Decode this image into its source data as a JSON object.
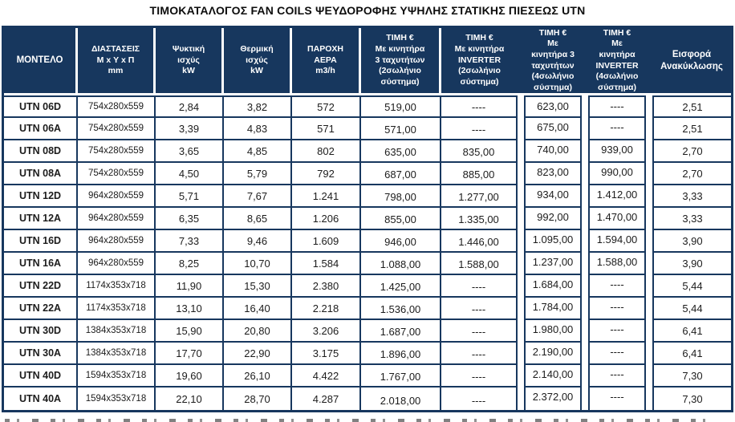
{
  "title": "ΤΙΜΟΚΑΤΑΛΟΓΟΣ FAN COILS ΨΕΥΔΟΡΟΦΗΣ ΥΨΗΛΗΣ ΣΤΑΤΙΚΗΣ ΠΙΕΣΕΩΣ UTN",
  "colors": {
    "header_bg": "#17375e",
    "border": "#17375e",
    "header_text": "#ffffff",
    "body_text": "#1c1c1c",
    "row_bg": "#ffffff"
  },
  "table": {
    "columns": [
      {
        "id": "model",
        "label": "ΜΟΝΤΕΛΟ"
      },
      {
        "id": "dimensions",
        "label": "ΔΙΑΣΤΑΣΕΙΣ\nΜ x Υ x Π\nmm"
      },
      {
        "id": "cooling-kw",
        "label": "Ψυκτική\nισχύς\nkW"
      },
      {
        "id": "heating-kw",
        "label": "Θερμική\nισχύς\nkW"
      },
      {
        "id": "airflow",
        "label": "ΠΑΡΟΧΗ\nΑΕΡΑ\nm3/h"
      },
      {
        "id": "price-2pipe-3speed",
        "label": "ΤΙΜΗ €\nΜε κινητήρα\n3 ταχυτήτων\n(2σωλήνιο\nσύστημα)"
      },
      {
        "id": "price-2pipe-inverter",
        "label": "ΤΙΜΗ  €\nΜε κινητήρα\nINVERTER\n(2σωλήνιο\nσύστημα)"
      },
      {
        "id": "price-4pipe-3speed",
        "label": "ΤΙΜΗ €\nΜε\nκινητήρα 3\nταχυτήτων\n(4σωλήνιο\nσύστημα)"
      },
      {
        "id": "price-4pipe-inverter",
        "label": "ΤΙΜΗ  €\nΜε\nκινητήρα\nINVERTER\n(4σωλήνιο\nσύστημα)"
      },
      {
        "id": "recycling-fee",
        "label": "Εισφορά\nΑνακύκλωσης"
      }
    ],
    "rows": [
      [
        "UTN 06D",
        "754x280x559",
        "2,84",
        "3,82",
        "572",
        "519,00",
        "----",
        "623,00",
        "----",
        "2,51"
      ],
      [
        "UTN 06A",
        "754x280x559",
        "3,39",
        "4,83",
        "571",
        "571,00",
        "----",
        "675,00",
        "----",
        "2,51"
      ],
      [
        "UTN 08D",
        "754x280x559",
        "3,65",
        "4,85",
        "802",
        "635,00",
        "835,00",
        "740,00",
        "939,00",
        "2,70"
      ],
      [
        "UTN 08A",
        "754x280x559",
        "4,50",
        "5,79",
        "792",
        "687,00",
        "885,00",
        "823,00",
        "990,00",
        "2,70"
      ],
      [
        "UTN 12D",
        "964x280x559",
        "5,71",
        "7,67",
        "1.241",
        "798,00",
        "1.277,00",
        "934,00",
        "1.412,00",
        "3,33"
      ],
      [
        "UTN 12A",
        "964x280x559",
        "6,35",
        "8,65",
        "1.206",
        "855,00",
        "1.335,00",
        "992,00",
        "1.470,00",
        "3,33"
      ],
      [
        "UTN 16D",
        "964x280x559",
        "7,33",
        "9,46",
        "1.609",
        "946,00",
        "1.446,00",
        "1.095,00",
        "1.594,00",
        "3,90"
      ],
      [
        "UTN 16A",
        "964x280x559",
        "8,25",
        "10,70",
        "1.584",
        "1.088,00",
        "1.588,00",
        "1.237,00",
        "1.588,00",
        "3,90"
      ],
      [
        "UTN 22D",
        "1174x353x718",
        "11,90",
        "15,30",
        "2.380",
        "1.425,00",
        "----",
        "1.684,00",
        "----",
        "5,44"
      ],
      [
        "UTN 22A",
        "1174x353x718",
        "13,10",
        "16,40",
        "2.218",
        "1.536,00",
        "----",
        "1.784,00",
        "----",
        "5,44"
      ],
      [
        "UTN 30D",
        "1384x353x718",
        "15,90",
        "20,80",
        "3.206",
        "1.687,00",
        "----",
        "1.980,00",
        "----",
        "6,41"
      ],
      [
        "UTN 30A",
        "1384x353x718",
        "17,70",
        "22,90",
        "3.175",
        "1.896,00",
        "----",
        "2.190,00",
        "----",
        "6,41"
      ],
      [
        "UTN 40D",
        "1594x353x718",
        "19,60",
        "26,10",
        "4.422",
        "1.767,00",
        "----",
        "2.140,00",
        "----",
        "7,30"
      ],
      [
        "UTN 40A",
        "1594x353x718",
        "22,10",
        "28,70",
        "4.287",
        "2.018,00",
        "----",
        "2.372,00",
        "----",
        "7,30"
      ]
    ]
  }
}
